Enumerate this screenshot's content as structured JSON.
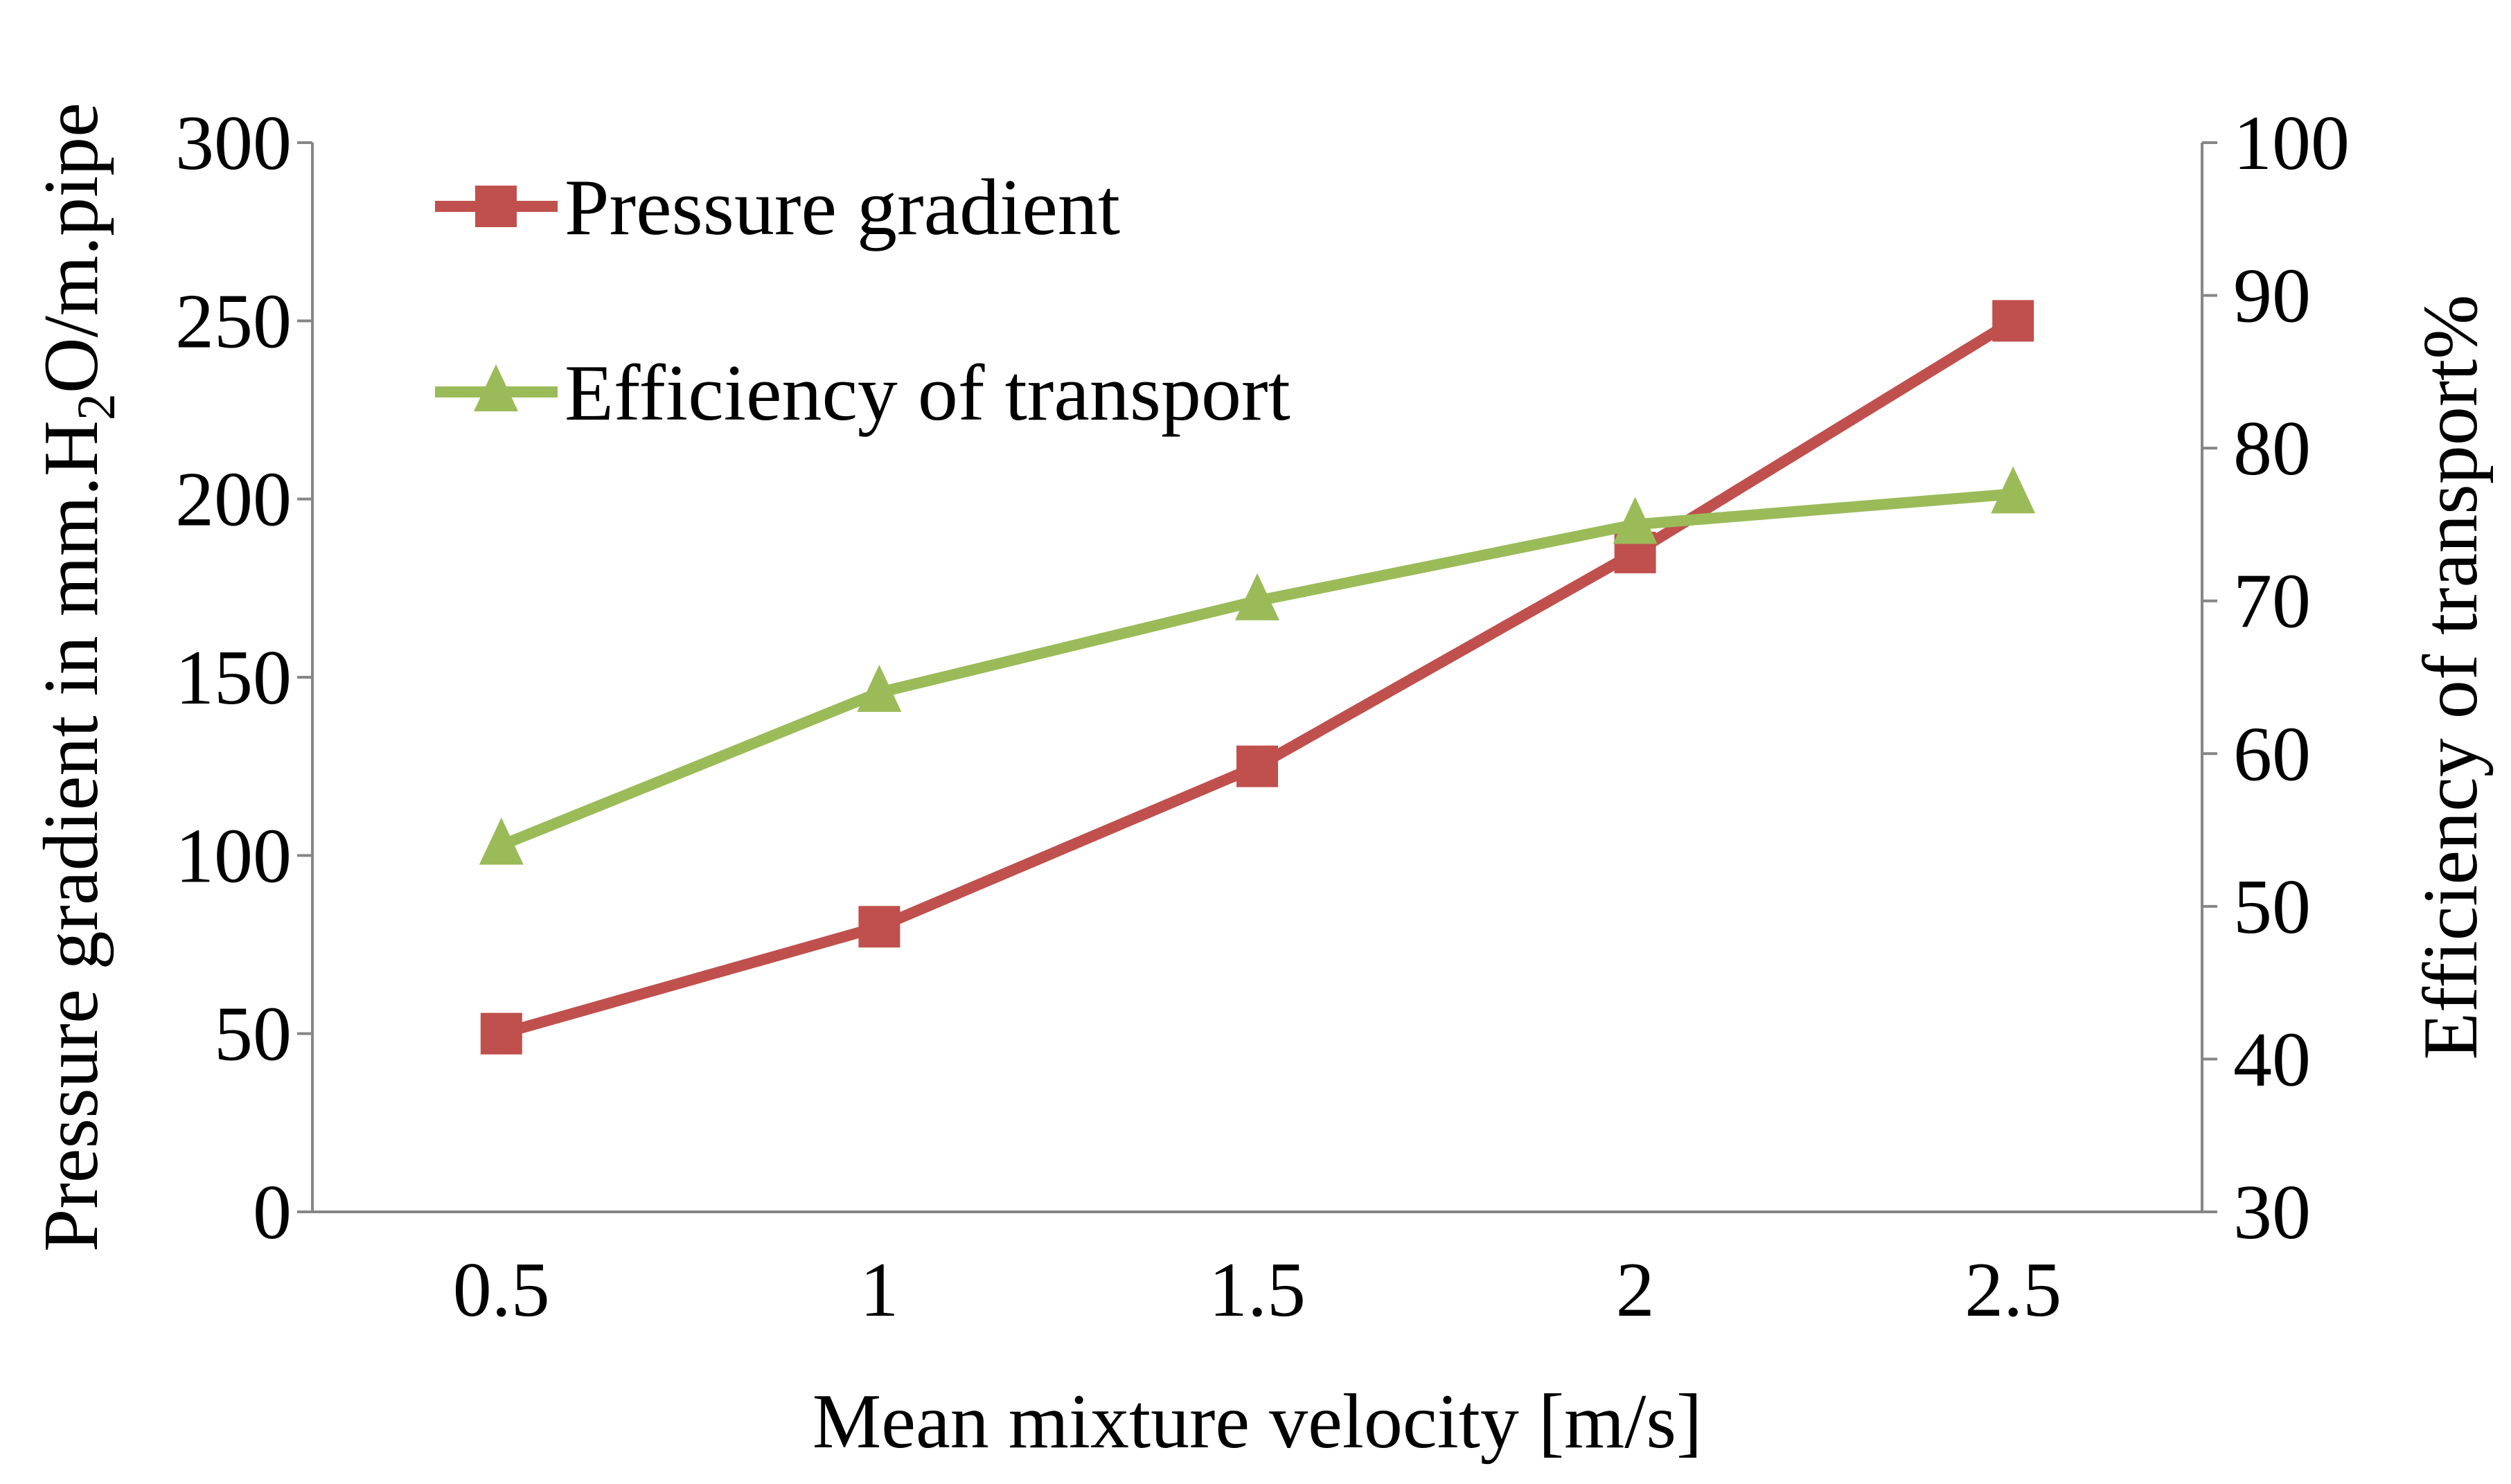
{
  "chart_data": {
    "type": "line",
    "x": [
      0.5,
      1,
      1.5,
      2,
      2.5
    ],
    "categories": [
      "0.5",
      "1",
      "1.5",
      "2",
      "2.5"
    ],
    "xlabel": "Mean mixture velocity [m/s]",
    "ylabel": "Pressure gradient in mm.H2O/m.pipe",
    "ylabel_parts": {
      "pre": "Pressure gradient in mm.H",
      "sub": "2",
      "post": "O/m.pipe"
    },
    "y2label": "Efficiency of transport%",
    "ylim": [
      0,
      300
    ],
    "y2lim": [
      30,
      100
    ],
    "yticks": [
      "0",
      "50",
      "100",
      "150",
      "200",
      "250",
      "300"
    ],
    "y2ticks": [
      "30",
      "40",
      "50",
      "60",
      "70",
      "80",
      "90",
      "100"
    ],
    "grid": false,
    "legend_position": "top-left",
    "series": [
      {
        "name": "Pressure gradient",
        "axis": "left",
        "marker": "square",
        "color": "#C0504D",
        "values": [
          50,
          80,
          125,
          185,
          250
        ]
      },
      {
        "name": "Efficiency of transport",
        "axis": "right",
        "marker": "triangle",
        "color": "#9BBB59",
        "values": [
          54,
          64,
          70,
          75,
          77
        ]
      }
    ]
  }
}
